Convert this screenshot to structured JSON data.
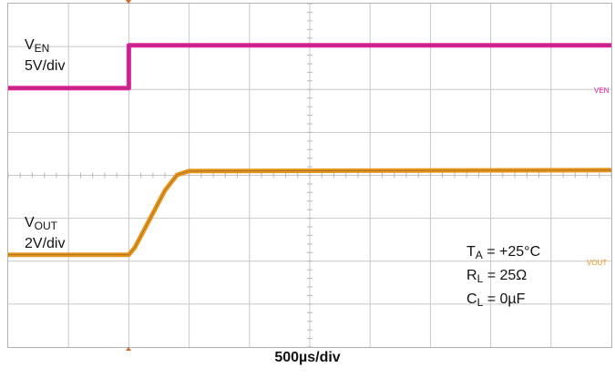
{
  "chart_data": {
    "type": "line",
    "title": "",
    "xlabel": "500µs/div",
    "time_per_div_us": 500,
    "x_divisions": 10,
    "y_divisions": 8,
    "grid": true,
    "series": [
      {
        "name": "VEN",
        "label_main": "V",
        "label_sub": "EN",
        "scale": "5V/div",
        "marker_label": "VEN",
        "color": "#e0219a",
        "x_div": [
          0,
          2.0,
          2.0,
          10
        ],
        "y_div": [
          0,
          0,
          1.0,
          1.0
        ],
        "ref_div": 6.03
      },
      {
        "name": "VOUT",
        "label_main": "V",
        "label_sub": "OUT",
        "scale": "2V/div",
        "marker_label": "VOUT",
        "color": "#e8951c",
        "x_div": [
          0,
          2.0,
          2.1,
          2.6,
          2.8,
          3.0,
          10
        ],
        "y_div": [
          0,
          0,
          0.17,
          1.5,
          1.86,
          1.95,
          1.97
        ],
        "ref_div": 2.15
      }
    ],
    "conditions": [
      {
        "main": "T",
        "sub": "A",
        "rest": " = +25°C"
      },
      {
        "main": "R",
        "sub": "L",
        "rest": " = 25Ω"
      },
      {
        "main": "C",
        "sub": "L",
        "rest": " = 0µF"
      }
    ]
  }
}
